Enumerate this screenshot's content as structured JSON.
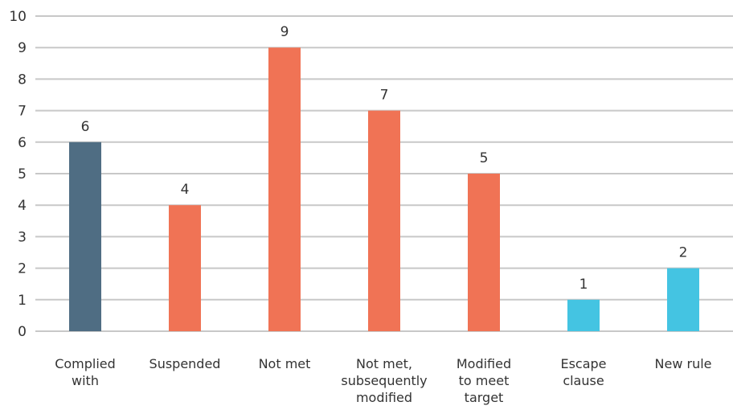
{
  "chart_data": {
    "type": "bar",
    "categories": [
      [
        "Complied",
        "with"
      ],
      [
        "Suspended"
      ],
      [
        "Not met"
      ],
      [
        "Not met,",
        "subsequently",
        "modified"
      ],
      [
        "Modified",
        "to meet",
        "target"
      ],
      [
        "Escape",
        "clause"
      ],
      [
        "New rule"
      ]
    ],
    "values": [
      6,
      4,
      9,
      7,
      5,
      1,
      2
    ],
    "colors": [
      "#4f6d83",
      "#f07355",
      "#f07355",
      "#f07355",
      "#f07355",
      "#44c4e2",
      "#44c4e2"
    ],
    "ylim": [
      0,
      10
    ],
    "yticks": [
      0,
      1,
      2,
      3,
      4,
      5,
      6,
      7,
      8,
      9,
      10
    ],
    "grid": true,
    "data_labels": true,
    "title": "",
    "xlabel": "",
    "ylabel": ""
  }
}
